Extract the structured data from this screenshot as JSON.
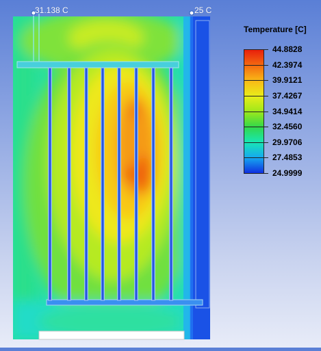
{
  "probes": [
    {
      "label": "31.138 C"
    },
    {
      "label": "25 C"
    }
  ],
  "legend": {
    "title": "Temperature [C]",
    "values": [
      "44.8828",
      "42.3974",
      "39.9121",
      "37.4267",
      "34.9414",
      "32.4560",
      "29.9706",
      "27.4853",
      "24.9999"
    ],
    "colors": [
      "#e8200c",
      "#f46a10",
      "#f9b916",
      "#e8ed1a",
      "#9ee81a",
      "#32d84a",
      "#18e6b4",
      "#16a8f0",
      "#1030e0"
    ]
  }
}
